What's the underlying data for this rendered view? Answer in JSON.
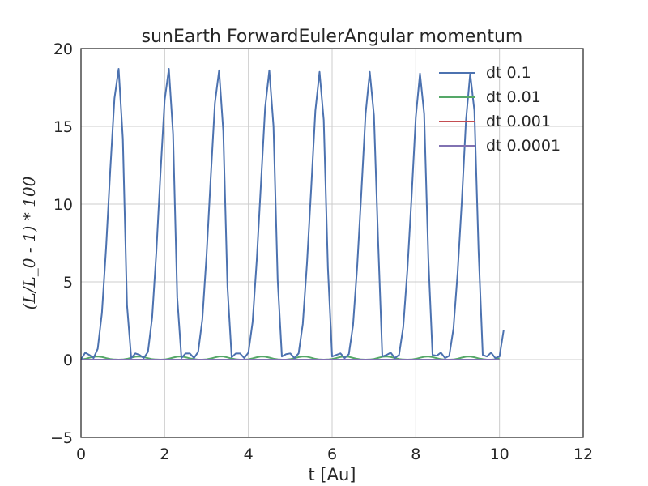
{
  "chart_data": {
    "type": "line",
    "title": "sunEarth ForwardEulerAngular momentum",
    "xlabel": "t [Au]",
    "ylabel": "(L/L_0 - 1) * 100",
    "xlim": [
      0,
      12
    ],
    "ylim": [
      -5,
      20
    ],
    "xticks": [
      0,
      2,
      4,
      6,
      8,
      10,
      12
    ],
    "yticks": [
      -5,
      0,
      5,
      10,
      15,
      20
    ],
    "xtick_labels": [
      "0",
      "2",
      "4",
      "6",
      "8",
      "10",
      "12"
    ],
    "ytick_labels": [
      "−5",
      "0",
      "5",
      "10",
      "15",
      "20"
    ],
    "grid": true,
    "legend": "top-right",
    "series": [
      {
        "name": "dt 0.1",
        "color": "#4c72b0",
        "x": [
          0.0,
          0.1,
          0.2,
          0.3,
          0.4,
          0.5,
          0.6,
          0.7,
          0.8,
          0.9,
          1.0,
          1.1,
          1.2,
          1.3,
          1.4,
          1.5,
          1.6,
          1.7,
          1.8,
          1.9,
          2.0,
          2.1,
          2.2,
          2.3,
          2.4,
          2.5,
          2.6,
          2.7,
          2.8,
          2.9,
          3.0,
          3.1,
          3.2,
          3.3,
          3.4,
          3.5,
          3.6,
          3.7,
          3.8,
          3.9,
          4.0,
          4.1,
          4.2,
          4.3,
          4.4,
          4.5,
          4.6,
          4.7,
          4.8,
          4.9,
          5.0,
          5.1,
          5.2,
          5.3,
          5.4,
          5.5,
          5.6,
          5.7,
          5.8,
          5.9,
          6.0,
          6.1,
          6.2,
          6.3,
          6.4,
          6.5,
          6.6,
          6.7,
          6.8,
          6.9,
          7.0,
          7.1,
          7.2,
          7.3,
          7.4,
          7.5,
          7.6,
          7.7,
          7.8,
          7.9,
          8.0,
          8.1,
          8.2,
          8.3,
          8.4,
          8.5,
          8.6,
          8.7,
          8.8,
          8.9,
          9.0,
          9.1,
          9.2,
          9.3,
          9.4,
          9.5,
          9.6,
          9.7,
          9.8,
          9.9,
          10.0,
          10.1
        ],
        "values": [
          0.0,
          0.45,
          0.3,
          0.1,
          0.7,
          3.0,
          7.2,
          12.2,
          16.8,
          18.7,
          14.2,
          3.5,
          0.1,
          0.4,
          0.3,
          0.1,
          0.5,
          2.7,
          6.9,
          12.0,
          16.7,
          18.7,
          14.5,
          4.0,
          0.1,
          0.4,
          0.4,
          0.1,
          0.5,
          2.6,
          6.7,
          11.7,
          16.5,
          18.6,
          14.7,
          4.7,
          0.15,
          0.4,
          0.4,
          0.1,
          0.45,
          2.4,
          6.4,
          11.3,
          16.2,
          18.6,
          15.0,
          5.1,
          0.2,
          0.35,
          0.4,
          0.1,
          0.4,
          2.3,
          6.2,
          11.0,
          16.0,
          18.5,
          15.4,
          5.9,
          0.2,
          0.3,
          0.4,
          0.1,
          0.35,
          2.2,
          6.0,
          10.8,
          15.8,
          18.5,
          15.7,
          7.6,
          0.2,
          0.3,
          0.45,
          0.1,
          0.3,
          2.1,
          5.8,
          10.5,
          15.6,
          18.4,
          15.8,
          6.5,
          0.3,
          0.25,
          0.45,
          0.1,
          0.25,
          2.0,
          5.6,
          10.2,
          15.4,
          18.4,
          16.0,
          7.0,
          0.3,
          0.2,
          0.45,
          0.1,
          0.2,
          1.9
        ]
      },
      {
        "name": "dt 0.01",
        "color": "#55a868",
        "x": [
          0.0,
          0.1,
          0.2,
          0.3,
          0.4,
          0.5,
          0.6,
          0.7,
          0.8,
          0.9,
          1.0,
          1.1,
          1.2,
          1.3,
          1.4,
          1.5,
          1.6,
          1.7,
          1.8,
          1.9,
          2.0,
          2.1,
          2.2,
          2.3,
          2.4,
          2.5,
          2.6,
          2.7,
          2.8,
          2.9,
          3.0,
          3.1,
          3.2,
          3.3,
          3.4,
          3.5,
          3.6,
          3.7,
          3.8,
          3.9,
          4.0,
          4.1,
          4.2,
          4.3,
          4.4,
          4.5,
          4.6,
          4.7,
          4.8,
          4.9,
          5.0,
          5.1,
          5.2,
          5.3,
          5.4,
          5.5,
          5.6,
          5.7,
          5.8,
          5.9,
          6.0,
          6.1,
          6.2,
          6.3,
          6.4,
          6.5,
          6.6,
          6.7,
          6.8,
          6.9,
          7.0,
          7.1,
          7.2,
          7.3,
          7.4,
          7.5,
          7.6,
          7.7,
          7.8,
          7.9,
          8.0,
          8.1,
          8.2,
          8.3,
          8.4,
          8.5,
          8.6,
          8.7,
          8.8,
          8.9,
          9.0,
          9.1,
          9.2,
          9.3,
          9.4,
          9.5,
          9.6,
          9.7,
          9.8,
          9.9,
          10.0
        ],
        "values": [
          0.0,
          0.05,
          0.12,
          0.18,
          0.2,
          0.17,
          0.1,
          0.04,
          0.01,
          0.0,
          0.01,
          0.05,
          0.12,
          0.19,
          0.2,
          0.16,
          0.09,
          0.03,
          0.01,
          0.0,
          0.01,
          0.06,
          0.13,
          0.19,
          0.2,
          0.15,
          0.08,
          0.03,
          0.0,
          0.0,
          0.02,
          0.07,
          0.14,
          0.2,
          0.2,
          0.14,
          0.07,
          0.02,
          0.0,
          0.0,
          0.02,
          0.08,
          0.15,
          0.2,
          0.19,
          0.13,
          0.06,
          0.02,
          0.0,
          0.0,
          0.03,
          0.09,
          0.16,
          0.2,
          0.19,
          0.12,
          0.05,
          0.01,
          0.0,
          0.01,
          0.04,
          0.1,
          0.17,
          0.2,
          0.18,
          0.11,
          0.05,
          0.01,
          0.0,
          0.01,
          0.04,
          0.11,
          0.18,
          0.2,
          0.17,
          0.1,
          0.04,
          0.01,
          0.0,
          0.01,
          0.05,
          0.12,
          0.18,
          0.2,
          0.16,
          0.09,
          0.03,
          0.0,
          0.0,
          0.01,
          0.06,
          0.13,
          0.19,
          0.2,
          0.15,
          0.08,
          0.03,
          0.0,
          0.0,
          0.02,
          0.07
        ]
      },
      {
        "name": "dt 0.001",
        "color": "#c44e52",
        "x": [
          0,
          10
        ],
        "values": [
          0,
          0
        ]
      },
      {
        "name": "dt 0.0001",
        "color": "#8172b2",
        "x": [
          0,
          10
        ],
        "values": [
          0,
          0
        ]
      }
    ]
  }
}
